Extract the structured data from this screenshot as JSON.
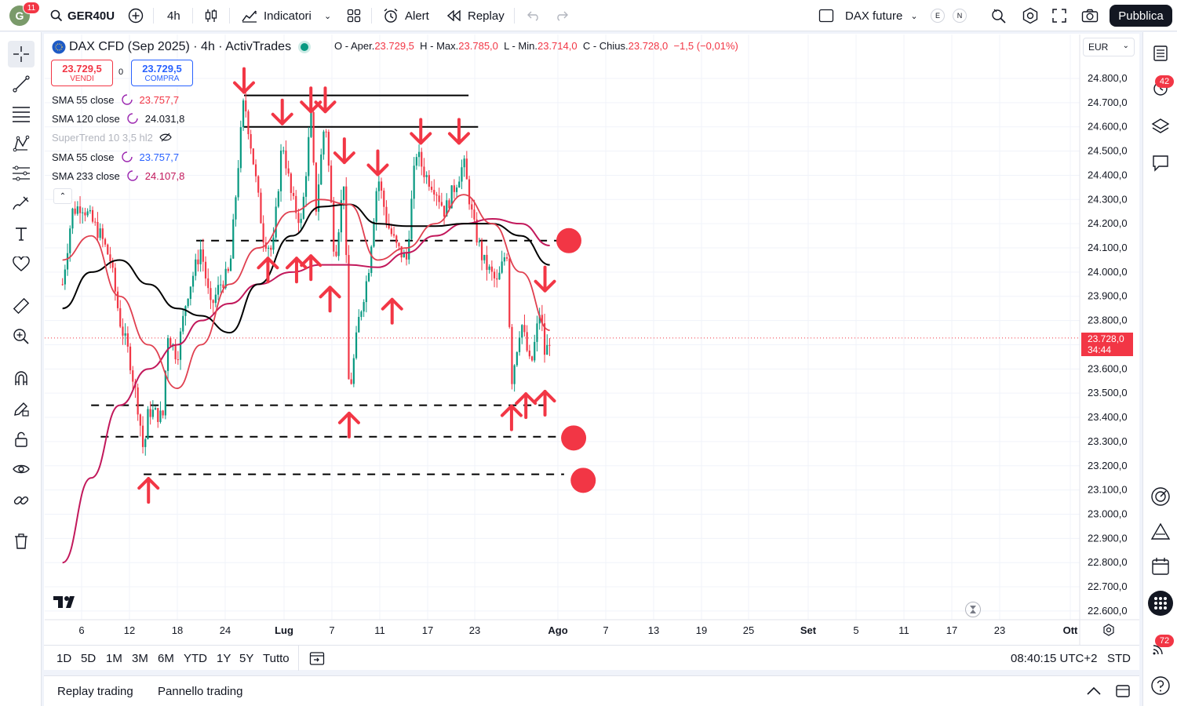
{
  "topbar": {
    "avatar_letter": "G",
    "avatar_badge": "11",
    "symbol": "GER40U",
    "interval": "4h",
    "indicators_label": "Indicatori",
    "alert_label": "Alert",
    "replay_label": "Replay",
    "layout_name": "DAX future",
    "pill_e": "E",
    "pill_n": "N",
    "publish_label": "Pubblica"
  },
  "legend": {
    "title": "DAX CFD (Sep 2025) · 4h · ActivTrades",
    "o_label": "O - Aper.",
    "o_value": "23.729,5",
    "h_label": "H - Max.",
    "h_value": "23.785,0",
    "l_label": "L - Min.",
    "l_value": "23.714,0",
    "c_label": "C - Chius.",
    "c_value": "23.728,0",
    "change": "−1,5 (−0,01%)",
    "sell_price": "23.729,5",
    "sell_label": "VENDI",
    "spread": "0",
    "buy_price": "23.729,5",
    "buy_label": "COMPRA"
  },
  "indicators": [
    {
      "name": "SMA 55 close",
      "value": "23.757,7",
      "color": "#f23645"
    },
    {
      "name": "SMA 120 close",
      "value": "24.031,8",
      "color": "#131722"
    },
    {
      "name": "SuperTrend 10 3,5 hl2",
      "value": "",
      "color": "#b2b5be"
    },
    {
      "name": "SMA 55 close",
      "value": "23.757,7",
      "color": "#2962ff"
    },
    {
      "name": "SMA 233 close",
      "value": "24.107,8",
      "color": "#c2185b"
    }
  ],
  "price_axis": {
    "currency": "EUR",
    "labels": [
      "24.800,0",
      "24.700,0",
      "24.600,0",
      "24.500,0",
      "24.400,0",
      "24.300,0",
      "24.200,0",
      "24.100,0",
      "24.000,0",
      "23.900,0",
      "23.800,0",
      "23.700,0",
      "23.600,0",
      "23.500,0",
      "23.400,0",
      "23.300,0",
      "23.200,0",
      "23.100,0",
      "23.000,0",
      "22.900,0",
      "22.800,0",
      "22.700,0",
      "22.600,0"
    ],
    "last_price": "23.728,0",
    "countdown": "34:44"
  },
  "time_axis": {
    "labels": [
      "6",
      "12",
      "18",
      "24",
      "Lug",
      "7",
      "11",
      "17",
      "23",
      "Ago",
      "7",
      "13",
      "19",
      "25",
      "Set",
      "5",
      "11",
      "17",
      "23",
      "Ott"
    ],
    "bold": [
      "Lug",
      "Ago",
      "Set",
      "Ott"
    ]
  },
  "ranges": [
    "1D",
    "5D",
    "1M",
    "3M",
    "6M",
    "YTD",
    "1Y",
    "5Y",
    "Tutto"
  ],
  "clock": "08:40:15 UTC+2",
  "session": "STD",
  "bottom_tabs": [
    "Replay trading",
    "Pannello trading"
  ],
  "right_badges": {
    "alerts": "42",
    "notifications": "72"
  },
  "colors": {
    "bear": "#f23645",
    "bull": "#089981",
    "accent": "#2962ff",
    "sma55": "#e04050",
    "sma120": "#000000",
    "sma233": "#c2185b"
  },
  "chart_data": {
    "type": "candlestick",
    "title": "DAX CFD (Sep 2025) · 4h · ActivTrades",
    "ylim": [
      22550,
      24850
    ],
    "close_path": [
      {
        "x": "Jun 2",
        "y": 23950
      },
      {
        "x": "Jun 4",
        "y": 24250
      },
      {
        "x": "Jun 6",
        "y": 24280
      },
      {
        "x": "Jun 10",
        "y": 24150
      },
      {
        "x": "Jun 12",
        "y": 24050
      },
      {
        "x": "Jun 14",
        "y": 23800
      },
      {
        "x": "Jun 16",
        "y": 23650
      },
      {
        "x": "Jun 18",
        "y": 23420
      },
      {
        "x": "Jun 19",
        "y": 23250
      },
      {
        "x": "Jun 20",
        "y": 23430
      },
      {
        "x": "Jun 23",
        "y": 23400
      },
      {
        "x": "Jun 24",
        "y": 23750
      },
      {
        "x": "Jun 26",
        "y": 23650
      },
      {
        "x": "Jun 28",
        "y": 23900
      },
      {
        "x": "Jul 1",
        "y": 24100
      },
      {
        "x": "Jul 3",
        "y": 23850
      },
      {
        "x": "Jul 5",
        "y": 23950
      },
      {
        "x": "Jul 7",
        "y": 24000
      },
      {
        "x": "Jul 9",
        "y": 24500
      },
      {
        "x": "Jul 10",
        "y": 24720
      },
      {
        "x": "Jul 12",
        "y": 24450
      },
      {
        "x": "Jul 14",
        "y": 24150
      },
      {
        "x": "Jul 16",
        "y": 24080
      },
      {
        "x": "Jul 18",
        "y": 24550
      },
      {
        "x": "Jul 20",
        "y": 24300
      },
      {
        "x": "Jul 22",
        "y": 24200
      },
      {
        "x": "Jul 24",
        "y": 24650
      },
      {
        "x": "Jul 25",
        "y": 24250
      },
      {
        "x": "Jul 27",
        "y": 24650
      },
      {
        "x": "Jul 29",
        "y": 24050
      },
      {
        "x": "Jul 31",
        "y": 24400
      },
      {
        "x": "Aug 1",
        "y": 23480
      },
      {
        "x": "Aug 3",
        "y": 23800
      },
      {
        "x": "Aug 5",
        "y": 24000
      },
      {
        "x": "Aug 7",
        "y": 24400
      },
      {
        "x": "Aug 9",
        "y": 24200
      },
      {
        "x": "Aug 11",
        "y": 24100
      },
      {
        "x": "Aug 13",
        "y": 24050
      },
      {
        "x": "Aug 15",
        "y": 24500
      },
      {
        "x": "Aug 17",
        "y": 24400
      },
      {
        "x": "Aug 19",
        "y": 24350
      },
      {
        "x": "Aug 21",
        "y": 24250
      },
      {
        "x": "Aug 23",
        "y": 24350
      },
      {
        "x": "Aug 25",
        "y": 24450
      },
      {
        "x": "Aug 27",
        "y": 24200
      },
      {
        "x": "Aug 29",
        "y": 24050
      },
      {
        "x": "Sep 1",
        "y": 23950
      },
      {
        "x": "Sep 3",
        "y": 24100
      },
      {
        "x": "Sep 4",
        "y": 23550
      },
      {
        "x": "Sep 6",
        "y": 23800
      },
      {
        "x": "Sep 8",
        "y": 23600
      },
      {
        "x": "Sep 10",
        "y": 23850
      },
      {
        "x": "Sep 11",
        "y": 23650
      },
      {
        "x": "Sep 12",
        "y": 23728
      }
    ],
    "sma55_path": [
      {
        "x": "Jun 2",
        "y": 24050
      },
      {
        "x": "Jun 8",
        "y": 24150
      },
      {
        "x": "Jun 14",
        "y": 23900
      },
      {
        "x": "Jun 20",
        "y": 23700
      },
      {
        "x": "Jun 26",
        "y": 23520
      },
      {
        "x": "Jul 1",
        "y": 23700
      },
      {
        "x": "Jul 7",
        "y": 23950
      },
      {
        "x": "Jul 13",
        "y": 24100
      },
      {
        "x": "Jul 20",
        "y": 24250
      },
      {
        "x": "Jul 26",
        "y": 24300
      },
      {
        "x": "Aug 1",
        "y": 24280
      },
      {
        "x": "Aug 7",
        "y": 24050
      },
      {
        "x": "Aug 13",
        "y": 24100
      },
      {
        "x": "Aug 19",
        "y": 24200
      },
      {
        "x": "Aug 25",
        "y": 24320
      },
      {
        "x": "Aug 31",
        "y": 24200
      },
      {
        "x": "Sep 6",
        "y": 24000
      },
      {
        "x": "Sep 12",
        "y": 23760
      }
    ],
    "sma120_path": [
      {
        "x": "Jun 2",
        "y": 23850
      },
      {
        "x": "Jun 8",
        "y": 24000
      },
      {
        "x": "Jun 14",
        "y": 24050
      },
      {
        "x": "Jun 20",
        "y": 23950
      },
      {
        "x": "Jun 26",
        "y": 23850
      },
      {
        "x": "Jul 1",
        "y": 23820
      },
      {
        "x": "Jul 7",
        "y": 23750
      },
      {
        "x": "Jul 13",
        "y": 23950
      },
      {
        "x": "Jul 20",
        "y": 24150
      },
      {
        "x": "Jul 26",
        "y": 24270
      },
      {
        "x": "Aug 1",
        "y": 24280
      },
      {
        "x": "Aug 7",
        "y": 24200
      },
      {
        "x": "Aug 13",
        "y": 24190
      },
      {
        "x": "Aug 19",
        "y": 24190
      },
      {
        "x": "Aug 25",
        "y": 24200
      },
      {
        "x": "Aug 31",
        "y": 24200
      },
      {
        "x": "Sep 6",
        "y": 24150
      },
      {
        "x": "Sep 12",
        "y": 24030
      }
    ],
    "sma233_path": [
      {
        "x": "Jun 2",
        "y": 22800
      },
      {
        "x": "Jun 8",
        "y": 23150
      },
      {
        "x": "Jun 14",
        "y": 23450
      },
      {
        "x": "Jun 20",
        "y": 23600
      },
      {
        "x": "Jun 26",
        "y": 23700
      },
      {
        "x": "Jul 1",
        "y": 23800
      },
      {
        "x": "Jul 7",
        "y": 23870
      },
      {
        "x": "Jul 13",
        "y": 23950
      },
      {
        "x": "Jul 20",
        "y": 24000
      },
      {
        "x": "Jul 26",
        "y": 24030
      },
      {
        "x": "Aug 1",
        "y": 24030
      },
      {
        "x": "Aug 7",
        "y": 24020
      },
      {
        "x": "Aug 13",
        "y": 24080
      },
      {
        "x": "Aug 19",
        "y": 24150
      },
      {
        "x": "Aug 25",
        "y": 24200
      },
      {
        "x": "Aug 31",
        "y": 24220
      },
      {
        "x": "Sep 6",
        "y": 24200
      },
      {
        "x": "Sep 12",
        "y": 24110
      }
    ],
    "horizontal_levels": [
      {
        "y": 24730,
        "style": "solid",
        "from": "Jul 10",
        "to": "Aug 26"
      },
      {
        "y": 24600,
        "style": "solid",
        "from": "Jul 10",
        "to": "Aug 28"
      },
      {
        "y": 24130,
        "style": "dashed",
        "from": "Jun 30",
        "to": "Sep 14"
      },
      {
        "y": 23450,
        "style": "dashed",
        "from": "Jun 8",
        "to": "Sep 12"
      },
      {
        "y": 23320,
        "style": "dashed",
        "from": "Jun 10",
        "to": "Sep 17"
      },
      {
        "y": 23165,
        "style": "dashed",
        "from": "Jun 19",
        "to": "Sep 15"
      }
    ],
    "markers_down": [
      {
        "x": "Jul 10",
        "y": 24730
      },
      {
        "x": "Jul 18",
        "y": 24600
      },
      {
        "x": "Jul 24",
        "y": 24650
      },
      {
        "x": "Jul 27",
        "y": 24650
      },
      {
        "x": "Jul 31",
        "y": 24440
      },
      {
        "x": "Aug 7",
        "y": 24390
      },
      {
        "x": "Aug 16",
        "y": 24520
      },
      {
        "x": "Aug 24",
        "y": 24520
      },
      {
        "x": "Sep 11",
        "y": 23910
      }
    ],
    "markers_up": [
      {
        "x": "Jun 20",
        "y": 23160
      },
      {
        "x": "Jul 15",
        "y": 24070
      },
      {
        "x": "Jul 21",
        "y": 24070
      },
      {
        "x": "Jul 24",
        "y": 24080
      },
      {
        "x": "Jul 28",
        "y": 23950
      },
      {
        "x": "Aug 1",
        "y": 23430
      },
      {
        "x": "Aug 10",
        "y": 23900
      },
      {
        "x": "Sep 4",
        "y": 23460
      },
      {
        "x": "Sep 7",
        "y": 23510
      },
      {
        "x": "Sep 11",
        "y": 23520
      }
    ],
    "target_dots": [
      {
        "x": "Sep 16",
        "y": 24130
      },
      {
        "x": "Sep 17",
        "y": 23315
      },
      {
        "x": "Sep 19",
        "y": 23140
      }
    ]
  }
}
